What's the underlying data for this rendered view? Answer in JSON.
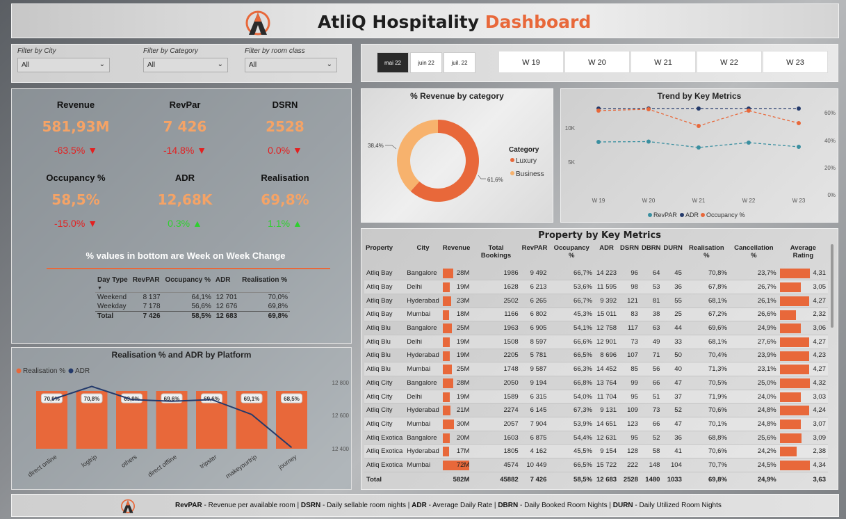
{
  "header": {
    "title_main": "AtliQ Hospitality",
    "title_accent": "Dashboard",
    "logo_icon": "atliq-logo-icon"
  },
  "filters": [
    {
      "label": "Filter by City",
      "value": "All"
    },
    {
      "label": "Filter by Category",
      "value": "All"
    },
    {
      "label": "Filter by room class",
      "value": "All"
    }
  ],
  "months": [
    "mai 22",
    "juin 22",
    "juil. 22"
  ],
  "weeks": [
    "W 19",
    "W 20",
    "W 21",
    "W 22",
    "W 23"
  ],
  "kpis": [
    {
      "name": "Revenue",
      "value": "581,93M",
      "change": "-63.5%",
      "dir": "down"
    },
    {
      "name": "RevPar",
      "value": "7 426",
      "change": "-14.8%",
      "dir": "down"
    },
    {
      "name": "DSRN",
      "value": "2528",
      "change": "0.0%",
      "dir": "down"
    },
    {
      "name": "Occupancy %",
      "value": "58,5%",
      "change": "-15.0%",
      "dir": "down"
    },
    {
      "name": "ADR",
      "value": "12,68K",
      "change": "0.3%",
      "dir": "up"
    },
    {
      "name": "Realisation",
      "value": "69,8%",
      "change": "1.1%",
      "dir": "up"
    }
  ],
  "kpi_note": "% values in bottom are Week on Week Change",
  "daytype": {
    "headers": [
      "Day Type",
      "RevPAR",
      "Occupancy %",
      "ADR",
      "Realisation %"
    ],
    "rows": [
      [
        "Weekend",
        "8 137",
        "64,1%",
        "12 701",
        "70,0%"
      ],
      [
        "Weekday",
        "7 178",
        "56,6%",
        "12 676",
        "69,8%"
      ]
    ],
    "total": [
      "Total",
      "7 426",
      "58,5%",
      "12 683",
      "69,8%"
    ]
  },
  "platform_chart": {
    "title": "Realisation % and ADR by Platform",
    "legend": [
      "Realisation %",
      "ADR"
    ],
    "y2_ticks": [
      "12 800",
      "12 600",
      "12 400"
    ]
  },
  "revcat_chart": {
    "title": "% Revenue by category",
    "legend_title": "Category",
    "legend": [
      "Luxury",
      "Business"
    ],
    "labels": [
      "38,4%",
      "61,6%"
    ]
  },
  "trend_chart": {
    "title": "Trend by Key Metrics",
    "left_ticks": [
      "10K",
      "5K"
    ],
    "right_ticks": [
      "60%",
      "40%",
      "20%",
      "0%"
    ],
    "legend": [
      "RevPAR",
      "ADR",
      "Occupancy %"
    ]
  },
  "property_table": {
    "title": "Property by Key Metrics",
    "headers": [
      "Property",
      "City",
      "Revenue",
      "Total Bookings",
      "RevPAR",
      "Occupancy %",
      "ADR",
      "DSRN",
      "DBRN",
      "DURN",
      "Realisation %",
      "Cancellation %",
      "Average Rating"
    ],
    "rows": [
      [
        "Atliq Bay",
        "Bangalore",
        "28M",
        "1986",
        "9 492",
        "66,7%",
        "14 223",
        "96",
        "64",
        "45",
        "70,8%",
        "23,7%",
        "4,31"
      ],
      [
        "Atliq Bay",
        "Delhi",
        "19M",
        "1628",
        "6 213",
        "53,6%",
        "11 595",
        "98",
        "53",
        "36",
        "67,8%",
        "26,7%",
        "3,05"
      ],
      [
        "Atliq Bay",
        "Hyderabad",
        "23M",
        "2502",
        "6 265",
        "66,7%",
        "9 392",
        "121",
        "81",
        "55",
        "68,1%",
        "26,1%",
        "4,27"
      ],
      [
        "Atliq Bay",
        "Mumbai",
        "18M",
        "1166",
        "6 802",
        "45,3%",
        "15 011",
        "83",
        "38",
        "25",
        "67,2%",
        "26,6%",
        "2,32"
      ],
      [
        "Atliq Blu",
        "Bangalore",
        "25M",
        "1963",
        "6 905",
        "54,1%",
        "12 758",
        "117",
        "63",
        "44",
        "69,6%",
        "24,9%",
        "3,06"
      ],
      [
        "Atliq Blu",
        "Delhi",
        "19M",
        "1508",
        "8 597",
        "66,6%",
        "12 901",
        "73",
        "49",
        "33",
        "68,1%",
        "27,6%",
        "4,27"
      ],
      [
        "Atliq Blu",
        "Hyderabad",
        "19M",
        "2205",
        "5 781",
        "66,5%",
        "8 696",
        "107",
        "71",
        "50",
        "70,4%",
        "23,9%",
        "4,23"
      ],
      [
        "Atliq Blu",
        "Mumbai",
        "25M",
        "1748",
        "9 587",
        "66,3%",
        "14 452",
        "85",
        "56",
        "40",
        "71,3%",
        "23,1%",
        "4,27"
      ],
      [
        "Atliq City",
        "Bangalore",
        "28M",
        "2050",
        "9 194",
        "66,8%",
        "13 764",
        "99",
        "66",
        "47",
        "70,5%",
        "25,0%",
        "4,32"
      ],
      [
        "Atliq City",
        "Delhi",
        "19M",
        "1589",
        "6 315",
        "54,0%",
        "11 704",
        "95",
        "51",
        "37",
        "71,9%",
        "24,0%",
        "3,03"
      ],
      [
        "Atliq City",
        "Hyderabad",
        "21M",
        "2274",
        "6 145",
        "67,3%",
        "9 131",
        "109",
        "73",
        "52",
        "70,6%",
        "24,8%",
        "4,24"
      ],
      [
        "Atliq City",
        "Mumbai",
        "30M",
        "2057",
        "7 904",
        "53,9%",
        "14 651",
        "123",
        "66",
        "47",
        "70,1%",
        "24,8%",
        "3,07"
      ],
      [
        "Atliq Exotica",
        "Bangalore",
        "20M",
        "1603",
        "6 875",
        "54,4%",
        "12 631",
        "95",
        "52",
        "36",
        "68,8%",
        "25,6%",
        "3,09"
      ],
      [
        "Atliq Exotica",
        "Hyderabad",
        "17M",
        "1805",
        "4 162",
        "45,5%",
        "9 154",
        "128",
        "58",
        "41",
        "70,6%",
        "24,2%",
        "2,38"
      ],
      [
        "Atliq Exotica",
        "Mumbai",
        "72M",
        "4574",
        "10 449",
        "66,5%",
        "15 722",
        "222",
        "148",
        "104",
        "70,7%",
        "24,5%",
        "4,34"
      ]
    ],
    "total": [
      "Total",
      "",
      "582M",
      "45882",
      "7 426",
      "58,5%",
      "12 683",
      "2528",
      "1480",
      "1033",
      "69,8%",
      "24,9%",
      "3,63"
    ]
  },
  "footer": {
    "items": [
      {
        "abbr": "RevPAR",
        "desc": " - Revenue per available room | "
      },
      {
        "abbr": "DSRN",
        "desc": " - Daily sellable room nights | "
      },
      {
        "abbr": "ADR",
        "desc": " - Average Daily Rate | "
      },
      {
        "abbr": "DBRN",
        "desc": " - Daily Booked Room Nights | "
      },
      {
        "abbr": "DURN",
        "desc": " - Daily Utilized Room Nights"
      }
    ]
  },
  "colors": {
    "accent": "#e8683a",
    "luxury": "#e8683a",
    "business": "#f7b26d",
    "revpar": "#3a8fa0",
    "adr": "#243a6b",
    "occupancy": "#e8683a",
    "kpi_value": "#f5a366"
  },
  "chart_data": [
    {
      "type": "bar",
      "title": "Realisation % and ADR by Platform",
      "categories": [
        "direct online",
        "logtrip",
        "others",
        "direct offline",
        "tripster",
        "makeyourtrip",
        "journey"
      ],
      "series": [
        {
          "name": "Realisation %",
          "values": [
            70.9,
            70.8,
            69.9,
            69.6,
            69.6,
            69.1,
            68.5
          ],
          "labels": [
            "70,9%",
            "70,8%",
            "69,9%",
            "69,6%",
            "69,6%",
            "69,1%",
            "68,5%"
          ]
        },
        {
          "name": "ADR",
          "type": "line",
          "values": [
            12710,
            12790,
            12710,
            12700,
            12710,
            12620,
            12420
          ]
        }
      ],
      "y2lim": [
        12300,
        12900
      ]
    },
    {
      "type": "pie",
      "title": "% Revenue by category",
      "categories": [
        "Luxury",
        "Business"
      ],
      "values": [
        61.6,
        38.4
      ]
    },
    {
      "type": "line",
      "title": "Trend by Key Metrics",
      "x": [
        "W 19",
        "W 20",
        "W 21",
        "W 22",
        "W 23"
      ],
      "series": [
        {
          "name": "RevPAR",
          "axis": "left",
          "values": [
            7900,
            7950,
            7100,
            7800,
            7200
          ]
        },
        {
          "name": "ADR",
          "axis": "left",
          "values": [
            12700,
            12700,
            12700,
            12700,
            12700
          ]
        },
        {
          "name": "Occupancy %",
          "axis": "right",
          "values": [
            62,
            63,
            51,
            62,
            53
          ]
        }
      ],
      "ylim": [
        0,
        13000
      ],
      "y2lim": [
        0,
        65
      ]
    }
  ]
}
